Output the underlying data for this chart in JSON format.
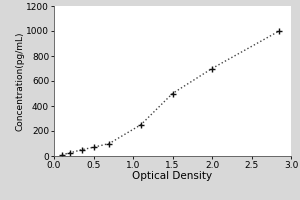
{
  "x_data": [
    0.1,
    0.2,
    0.35,
    0.5,
    0.7,
    1.1,
    1.5,
    2.0,
    2.85
  ],
  "y_data": [
    10,
    25,
    50,
    70,
    100,
    250,
    500,
    700,
    1000
  ],
  "xlabel": "Optical Density",
  "ylabel": "Concentration(pg/mL)",
  "xlim": [
    0,
    3.0
  ],
  "ylim": [
    0,
    1200
  ],
  "xticks": [
    0,
    0.5,
    1.0,
    1.5,
    2.0,
    2.5,
    3.0
  ],
  "yticks": [
    0,
    200,
    400,
    600,
    800,
    1000,
    1200
  ],
  "line_color": "#444444",
  "marker_color": "#111111",
  "bg_color": "#d8d8d8",
  "plot_bg": "#ffffff",
  "xlabel_fontsize": 7.5,
  "ylabel_fontsize": 6.5,
  "tick_fontsize": 6.5,
  "linewidth": 1.0,
  "markersize": 4.5,
  "markeredgewidth": 1.0
}
